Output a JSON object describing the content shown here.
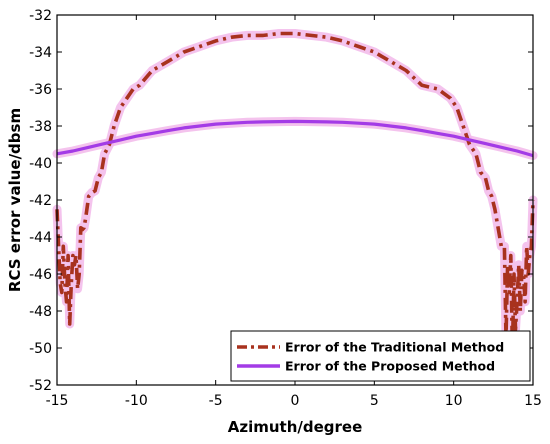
{
  "chart_data": {
    "type": "line",
    "xlabel": "Azimuth/degree",
    "ylabel": "RCS error value/dbsm",
    "xlim": [
      -15,
      15
    ],
    "ylim": [
      -52,
      -32
    ],
    "xticks": [
      -15,
      -10,
      -5,
      0,
      5,
      10,
      15
    ],
    "yticks": [
      -52,
      -50,
      -48,
      -46,
      -44,
      -42,
      -40,
      -38,
      -36,
      -34,
      -32
    ],
    "grid": false,
    "legend_position": "bottom-right",
    "series": [
      {
        "name": "Error of the Traditional Method",
        "color": "#a8321e",
        "glow_color": "#f2b8ea",
        "style": "dash-dot",
        "x": [
          -15,
          -14.9,
          -14.8,
          -14.7,
          -14.6,
          -14.5,
          -14.4,
          -14.3,
          -14.2,
          -14.1,
          -14.0,
          -13.9,
          -13.8,
          -13.7,
          -13.6,
          -13.5,
          -13.4,
          -13.3,
          -13.2,
          -13.0,
          -12.8,
          -12.6,
          -12.4,
          -12.2,
          -12.0,
          -11.7,
          -11.4,
          -11.0,
          -10.6,
          -10.2,
          -9.8,
          -9.0,
          -8.0,
          -7.0,
          -6.0,
          -5.0,
          -4.0,
          -3.0,
          -2.0,
          -1.0,
          0.0,
          1.0,
          2.0,
          3.0,
          4.0,
          5.0,
          6.0,
          7.0,
          8.0,
          9.0,
          9.8,
          10.2,
          10.6,
          11.0,
          11.4,
          11.7,
          12.0,
          12.2,
          12.4,
          12.6,
          12.8,
          13.0,
          13.2,
          13.3,
          13.4,
          13.5,
          13.6,
          13.7,
          13.8,
          13.9,
          14.0,
          14.1,
          14.2,
          14.3,
          14.4,
          14.5,
          14.6,
          14.7,
          14.8,
          14.9,
          15.0
        ],
        "y": [
          -42.5,
          -44.5,
          -46.5,
          -47.0,
          -44.5,
          -46.5,
          -47.5,
          -45.0,
          -48.7,
          -46.5,
          -45.0,
          -45.5,
          -45.0,
          -46.8,
          -46.0,
          -43.5,
          -43.6,
          -43.5,
          -43.0,
          -41.8,
          -41.6,
          -41.5,
          -40.8,
          -40.5,
          -39.5,
          -39.0,
          -38.0,
          -37.0,
          -36.5,
          -36.0,
          -35.8,
          -35.0,
          -34.5,
          -34.0,
          -33.7,
          -33.4,
          -33.2,
          -33.1,
          -33.1,
          -33.0,
          -33.0,
          -33.1,
          -33.2,
          -33.4,
          -33.7,
          -34.0,
          -34.5,
          -35.0,
          -35.8,
          -36.0,
          -36.5,
          -37.0,
          -38.0,
          -39.0,
          -39.5,
          -40.5,
          -40.8,
          -41.5,
          -41.8,
          -42.5,
          -43.5,
          -44.5,
          -44.5,
          -49.5,
          -45.5,
          -47.0,
          -45.0,
          -50.2,
          -46.0,
          -49.0,
          -47.5,
          -45.5,
          -48.0,
          -45.8,
          -46.0,
          -47.5,
          -44.5,
          -46.0,
          -45.0,
          -44.5,
          -42.0
        ]
      },
      {
        "name": "Error of the Proposed Method",
        "color": "#a33be6",
        "glow_color": "#f2b8ea",
        "style": "solid",
        "x": [
          -15,
          -14,
          -13,
          -12,
          -11,
          -10,
          -9,
          -8,
          -7,
          -6,
          -5,
          -4,
          -3,
          -2,
          -1,
          0,
          1,
          2,
          3,
          4,
          5,
          6,
          7,
          8,
          9,
          10,
          11,
          12,
          13,
          14,
          15
        ],
        "y": [
          -39.5,
          -39.35,
          -39.15,
          -38.95,
          -38.75,
          -38.55,
          -38.4,
          -38.25,
          -38.1,
          -38.0,
          -37.9,
          -37.85,
          -37.8,
          -37.78,
          -37.76,
          -37.75,
          -37.76,
          -37.78,
          -37.8,
          -37.85,
          -37.9,
          -38.0,
          -38.1,
          -38.25,
          -38.4,
          -38.55,
          -38.75,
          -38.95,
          -39.15,
          -39.35,
          -39.6
        ]
      }
    ]
  }
}
